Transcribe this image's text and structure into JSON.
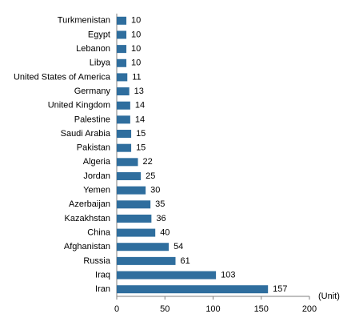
{
  "chart_data": {
    "type": "bar",
    "orientation": "horizontal",
    "categories": [
      "Turkmenistan",
      "Egypt",
      "Lebanon",
      "Libya",
      "United States of America",
      "Germany",
      "United Kingdom",
      "Palestine",
      "Saudi Arabia",
      "Pakistan",
      "Algeria",
      "Jordan",
      "Yemen",
      "Azerbaijan",
      "Kazakhstan",
      "China",
      "Afghanistan",
      "Russia",
      "Iraq",
      "Iran"
    ],
    "values": [
      10,
      10,
      10,
      10,
      11,
      13,
      14,
      14,
      15,
      15,
      22,
      25,
      30,
      35,
      36,
      40,
      54,
      61,
      103,
      157
    ],
    "color": "#2f6e9e",
    "xlim": [
      0,
      200
    ],
    "xticks": [
      0,
      50,
      100,
      150,
      200
    ],
    "unit_label": "(Unit)"
  }
}
